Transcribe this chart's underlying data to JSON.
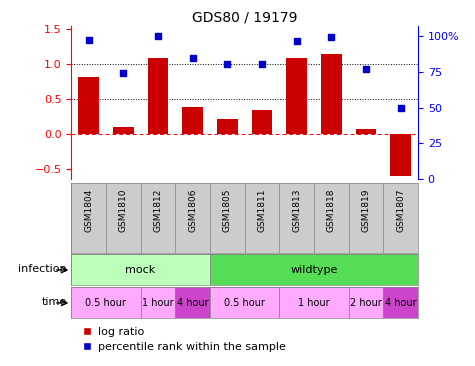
{
  "title": "GDS80 / 19179",
  "samples": [
    "GSM1804",
    "GSM1810",
    "GSM1812",
    "GSM1806",
    "GSM1805",
    "GSM1811",
    "GSM1813",
    "GSM1818",
    "GSM1819",
    "GSM1807"
  ],
  "log_ratio": [
    0.82,
    0.1,
    1.08,
    0.38,
    0.22,
    0.34,
    1.08,
    1.15,
    0.07,
    -0.6
  ],
  "percentile_raw": [
    1.35,
    0.87,
    1.4,
    1.08,
    1.0,
    1.0,
    1.33,
    1.38,
    0.93,
    0.37
  ],
  "bar_color": "#cc0000",
  "dot_color": "#0000cc",
  "ylim": [
    -0.65,
    1.55
  ],
  "y2lim": [
    0,
    107
  ],
  "y2ticks": [
    0,
    25,
    50,
    75,
    100
  ],
  "yticks": [
    -0.5,
    0.0,
    0.5,
    1.0,
    1.5
  ],
  "infection_groups": [
    {
      "label": "mock",
      "start": 0,
      "end": 4,
      "color": "#bbffbb"
    },
    {
      "label": "wildtype",
      "start": 4,
      "end": 10,
      "color": "#55dd55"
    }
  ],
  "time_groups": [
    {
      "label": "0.5 hour",
      "start": 0,
      "end": 2,
      "color": "#ffaaff"
    },
    {
      "label": "1 hour",
      "start": 2,
      "end": 3,
      "color": "#ffaaff"
    },
    {
      "label": "4 hour",
      "start": 3,
      "end": 4,
      "color": "#cc44cc"
    },
    {
      "label": "0.5 hour",
      "start": 4,
      "end": 6,
      "color": "#ffaaff"
    },
    {
      "label": "1 hour",
      "start": 6,
      "end": 8,
      "color": "#ffaaff"
    },
    {
      "label": "2 hour",
      "start": 8,
      "end": 9,
      "color": "#ffaaff"
    },
    {
      "label": "4 hour",
      "start": 9,
      "end": 10,
      "color": "#cc44cc"
    }
  ],
  "sample_bg": "#cccccc",
  "legend_items": [
    "log ratio",
    "percentile rank within the sample"
  ],
  "legend_colors": [
    "#cc0000",
    "#0000cc"
  ]
}
